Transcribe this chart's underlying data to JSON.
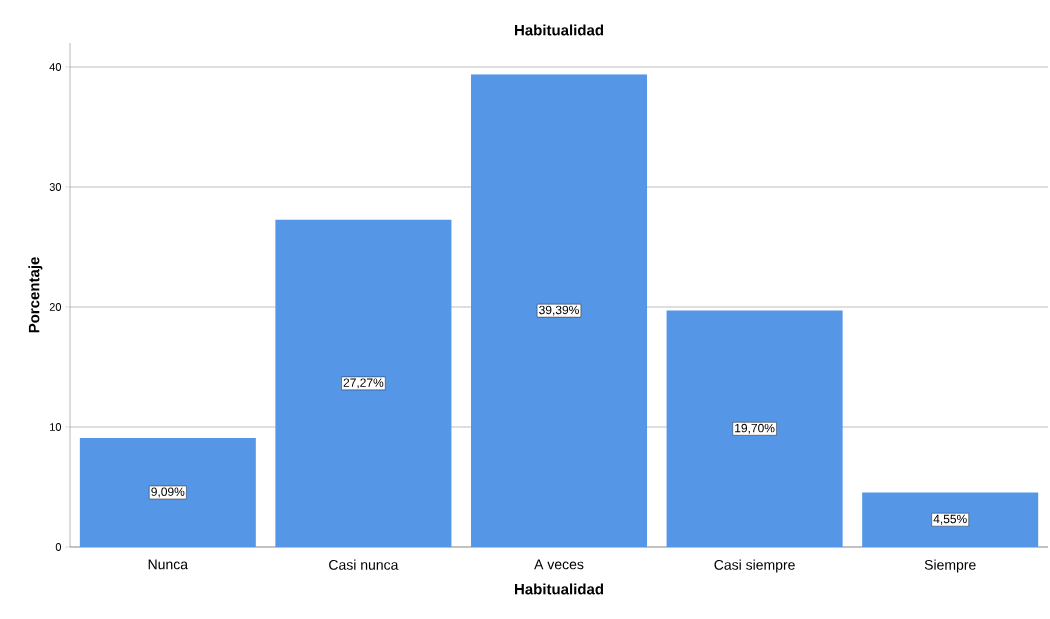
{
  "chart_data": {
    "type": "bar",
    "title": "Habitualidad",
    "xlabel": "Habitualidad",
    "ylabel": "Porcentaje",
    "categories": [
      "Nunca",
      "Casi nunca",
      "A veces",
      "Casi siempre",
      "Siempre"
    ],
    "values": [
      9.09,
      27.27,
      39.39,
      19.7,
      4.55
    ],
    "value_labels": [
      "9,09%",
      "27,27%",
      "39,39%",
      "19,70%",
      "4,55%"
    ],
    "color": "#5596e6",
    "ylim": [
      0,
      42
    ],
    "yticks": [
      0,
      10,
      20,
      30,
      40
    ],
    "grid": "y"
  }
}
